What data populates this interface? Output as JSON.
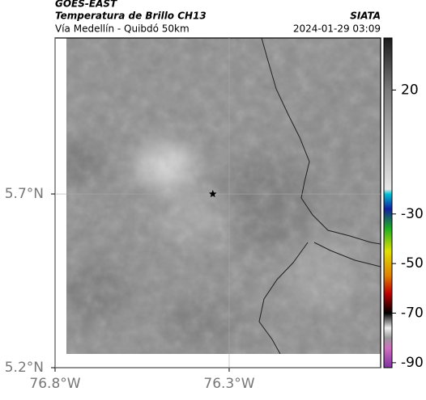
{
  "chart_data": {
    "type": "map",
    "title": "GOES-EAST",
    "subtitle": "Temperatura de Brillo CH13",
    "caption": "Vía Medellín - Quibdó 50km",
    "source": "SIATA",
    "timestamp": "2024-01-29 03:09",
    "xlim": [
      -76.8,
      -75.865
    ],
    "ylim": [
      5.2,
      6.149
    ],
    "xticks": [
      {
        "value": -76.8,
        "label": "76.8°W"
      },
      {
        "value": -76.3,
        "label": "76.3°W"
      }
    ],
    "yticks": [
      {
        "value": 5.2,
        "label": "5.2°N"
      },
      {
        "value": 5.7,
        "label": "5.7°N"
      }
    ],
    "grid": true,
    "marker": {
      "lon": -76.347,
      "lat": 5.7
    },
    "clim": [
      -92,
      41
    ],
    "cticks": [
      20,
      -30,
      -50,
      -70,
      -90
    ],
    "colormap": [
      {
        "value": 41,
        "color": "#1a1a1a"
      },
      {
        "value": 20,
        "color": "#7a7a7a"
      },
      {
        "value": -20,
        "color": "#e6e6e6"
      },
      {
        "value": -22,
        "color": "#00c0d0"
      },
      {
        "value": -28,
        "color": "#1020a0"
      },
      {
        "value": -36,
        "color": "#20b020"
      },
      {
        "value": -45,
        "color": "#e0e000"
      },
      {
        "value": -55,
        "color": "#e08000"
      },
      {
        "value": -62,
        "color": "#c00000"
      },
      {
        "value": -70,
        "color": "#000000"
      },
      {
        "value": -76,
        "color": "#eeeeee"
      },
      {
        "value": -80,
        "color": "#999999"
      },
      {
        "value": -84,
        "color": "#d070c0"
      },
      {
        "value": -92,
        "color": "#8030a0"
      }
    ]
  }
}
